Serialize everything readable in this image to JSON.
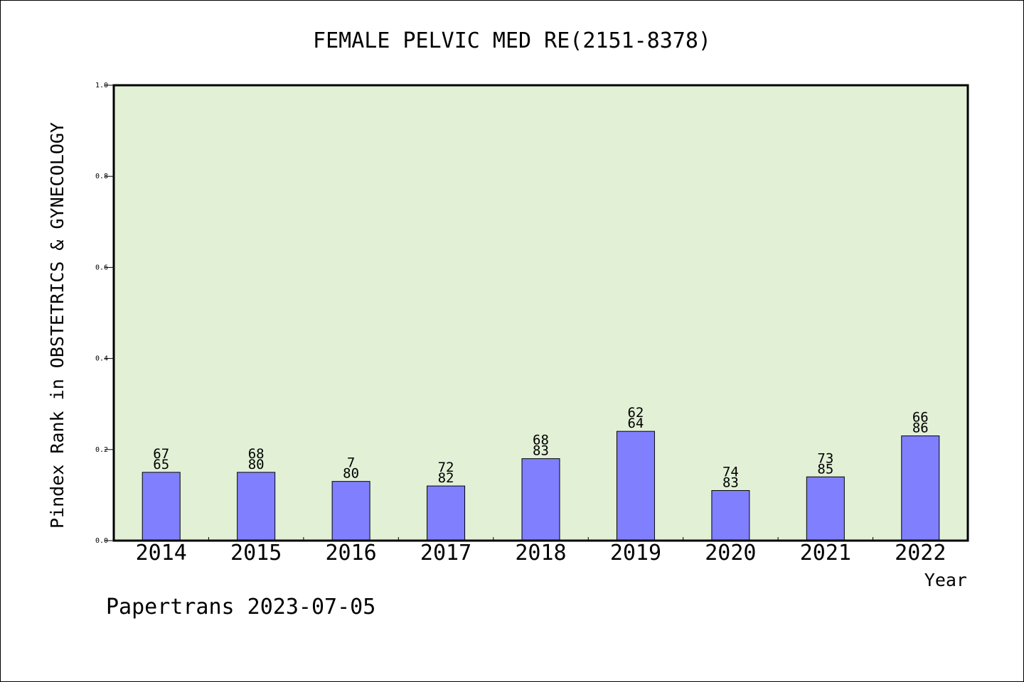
{
  "chart_data": {
    "type": "bar",
    "title": "FEMALE PELVIC MED RE(2151-8378)",
    "xlabel": "Year",
    "ylabel": "Pindex Rank in OBSTETRICS & GYNECOLOGY",
    "ylim": [
      0,
      1.0
    ],
    "yticks": [
      "0.0",
      "0.2",
      "0.4",
      "0.6",
      "0.8",
      "1.0"
    ],
    "categories": [
      "2014",
      "2015",
      "2016",
      "2017",
      "2018",
      "2019",
      "2020",
      "2021",
      "2022"
    ],
    "values": [
      0.15,
      0.15,
      0.13,
      0.12,
      0.18,
      0.24,
      0.11,
      0.14,
      0.23
    ],
    "labels_top": [
      "67",
      "68",
      "7",
      "72",
      "68",
      "62",
      "74",
      "73",
      "66"
    ],
    "labels_bottom": [
      "65",
      "80",
      "80",
      "82",
      "83",
      "64",
      "83",
      "85",
      "86"
    ],
    "grid": false,
    "colors": {
      "bar": "#8080ff",
      "plot_background": "#e2f0d6"
    }
  },
  "footer": "Papertrans 2023-07-05"
}
